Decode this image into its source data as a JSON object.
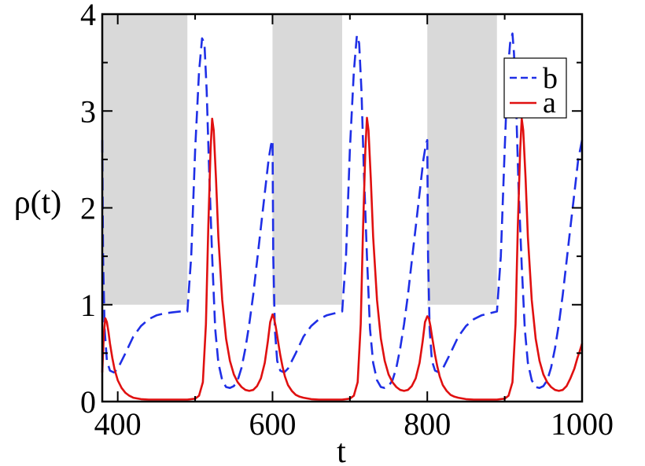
{
  "chart_data": {
    "type": "line",
    "title": "",
    "xlabel": "t",
    "ylabel": "ρ(t)",
    "xlim": [
      380,
      1000
    ],
    "ylim": [
      0,
      4
    ],
    "xticks": [
      400,
      600,
      800,
      1000
    ],
    "xtick_labels": [
      "400",
      "600",
      "800",
      "1000"
    ],
    "yticks": [
      0,
      1,
      2,
      3,
      4
    ],
    "ytick_labels": [
      "0",
      "1",
      "2",
      "3",
      "4"
    ],
    "grid": false,
    "legend_position": "top-right",
    "shaded_regions": [
      {
        "x0": 380,
        "x1": 490,
        "y0": 1,
        "y1": 4,
        "color": "#d9d9d9"
      },
      {
        "x0": 600,
        "x1": 690,
        "y0": 1,
        "y1": 4,
        "color": "#d9d9d9"
      },
      {
        "x0": 800,
        "x1": 890,
        "y0": 1,
        "y1": 4,
        "color": "#d9d9d9"
      }
    ],
    "series": [
      {
        "name": "b",
        "color": "#1f2fe6",
        "style": "dashed",
        "x": [
          380,
          381,
          383,
          386,
          390,
          395,
          400,
          410,
          420,
          430,
          440,
          450,
          460,
          470,
          480,
          490,
          495,
          500,
          505,
          509,
          512,
          515,
          518,
          522,
          526,
          530,
          535,
          540,
          545,
          550,
          555,
          560,
          565,
          570,
          575,
          580,
          585,
          590,
          595,
          598,
          600,
          601,
          603,
          606,
          610,
          615,
          620,
          630,
          640,
          650,
          660,
          670,
          680,
          690,
          695,
          700,
          705,
          709,
          712,
          715,
          718,
          722,
          726,
          730,
          735,
          740,
          745,
          750,
          755,
          760,
          765,
          770,
          775,
          780,
          785,
          790,
          795,
          798,
          800,
          801,
          803,
          806,
          810,
          815,
          820,
          830,
          840,
          850,
          860,
          870,
          880,
          890,
          895,
          900,
          904,
          907,
          910,
          912,
          915,
          918,
          922,
          926,
          930,
          935,
          940,
          945,
          950,
          955,
          960,
          965,
          970,
          975,
          980,
          985,
          990,
          995,
          1000
        ],
        "values": [
          2.7,
          1.5,
          0.75,
          0.42,
          0.32,
          0.3,
          0.34,
          0.5,
          0.67,
          0.78,
          0.85,
          0.89,
          0.91,
          0.92,
          0.93,
          0.93,
          1.5,
          2.6,
          3.4,
          3.75,
          3.7,
          3.2,
          2.4,
          1.5,
          0.75,
          0.4,
          0.22,
          0.15,
          0.14,
          0.16,
          0.22,
          0.35,
          0.55,
          0.8,
          1.1,
          1.45,
          1.8,
          2.15,
          2.5,
          2.65,
          2.7,
          1.5,
          0.75,
          0.42,
          0.32,
          0.3,
          0.34,
          0.5,
          0.67,
          0.78,
          0.85,
          0.89,
          0.91,
          0.93,
          1.5,
          2.6,
          3.4,
          3.78,
          3.7,
          3.2,
          2.4,
          1.5,
          0.75,
          0.4,
          0.22,
          0.15,
          0.14,
          0.16,
          0.22,
          0.35,
          0.55,
          0.8,
          1.1,
          1.45,
          1.8,
          2.15,
          2.5,
          2.65,
          2.7,
          1.5,
          0.75,
          0.42,
          0.32,
          0.3,
          0.34,
          0.5,
          0.67,
          0.78,
          0.85,
          0.89,
          0.91,
          0.93,
          1.5,
          2.6,
          3.4,
          3.7,
          3.8,
          3.6,
          3.0,
          2.2,
          1.4,
          0.75,
          0.4,
          0.22,
          0.15,
          0.14,
          0.16,
          0.22,
          0.35,
          0.55,
          0.8,
          1.1,
          1.45,
          1.8,
          2.15,
          2.5,
          2.7
        ]
      },
      {
        "name": "a",
        "color": "#e01010",
        "style": "solid",
        "x": [
          380,
          382,
          384,
          386,
          388,
          390,
          393,
          396,
          400,
          405,
          410,
          415,
          420,
          430,
          440,
          450,
          460,
          470,
          480,
          490,
          500,
          505,
          510,
          514,
          517,
          520,
          522,
          524,
          527,
          530,
          535,
          540,
          545,
          550,
          555,
          560,
          565,
          570,
          575,
          580,
          585,
          590,
          594,
          597,
          600,
          602,
          604,
          606,
          608,
          610,
          613,
          616,
          620,
          625,
          630,
          635,
          640,
          650,
          660,
          670,
          680,
          690,
          700,
          705,
          710,
          714,
          717,
          720,
          722,
          724,
          727,
          730,
          735,
          740,
          745,
          750,
          755,
          760,
          765,
          770,
          775,
          780,
          785,
          790,
          794,
          797,
          800,
          802,
          804,
          806,
          808,
          810,
          813,
          816,
          820,
          825,
          830,
          835,
          840,
          850,
          860,
          870,
          880,
          890,
          900,
          905,
          910,
          914,
          917,
          920,
          922,
          924,
          927,
          930,
          935,
          940,
          945,
          950,
          955,
          960,
          965,
          970,
          975,
          980,
          985,
          990,
          994,
          997,
          1000
        ],
        "values": [
          0.3,
          0.7,
          0.86,
          0.82,
          0.72,
          0.6,
          0.45,
          0.33,
          0.22,
          0.14,
          0.09,
          0.06,
          0.04,
          0.025,
          0.02,
          0.02,
          0.02,
          0.02,
          0.02,
          0.02,
          0.03,
          0.06,
          0.2,
          0.8,
          1.8,
          2.6,
          2.92,
          2.8,
          2.3,
          1.7,
          1.05,
          0.65,
          0.42,
          0.28,
          0.2,
          0.15,
          0.12,
          0.11,
          0.12,
          0.16,
          0.24,
          0.4,
          0.62,
          0.82,
          0.9,
          0.86,
          0.78,
          0.68,
          0.58,
          0.48,
          0.36,
          0.26,
          0.17,
          0.11,
          0.07,
          0.05,
          0.04,
          0.025,
          0.02,
          0.02,
          0.02,
          0.02,
          0.03,
          0.06,
          0.2,
          0.8,
          1.8,
          2.6,
          2.93,
          2.8,
          2.3,
          1.7,
          1.05,
          0.65,
          0.42,
          0.28,
          0.2,
          0.15,
          0.12,
          0.11,
          0.12,
          0.16,
          0.24,
          0.4,
          0.62,
          0.82,
          0.88,
          0.86,
          0.78,
          0.68,
          0.58,
          0.48,
          0.36,
          0.26,
          0.17,
          0.11,
          0.07,
          0.05,
          0.04,
          0.025,
          0.02,
          0.02,
          0.02,
          0.02,
          0.03,
          0.06,
          0.2,
          0.8,
          1.8,
          2.6,
          2.92,
          2.8,
          2.3,
          1.7,
          1.05,
          0.65,
          0.42,
          0.28,
          0.2,
          0.15,
          0.12,
          0.11,
          0.12,
          0.16,
          0.24,
          0.34,
          0.45,
          0.52,
          0.6
        ]
      }
    ]
  }
}
